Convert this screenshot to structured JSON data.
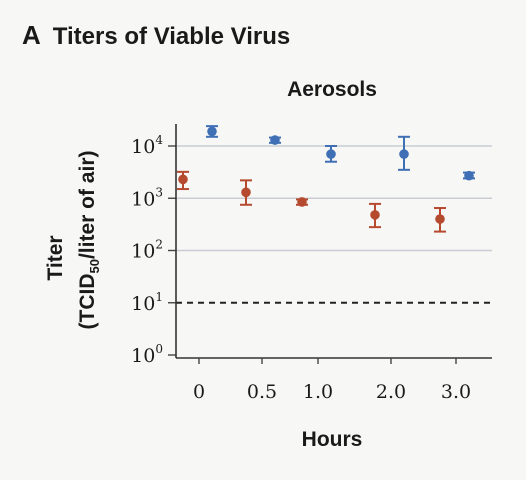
{
  "heading": {
    "panel_letter": "A",
    "title": "Titers of Viable Virus"
  },
  "chart_data": {
    "type": "scatter",
    "subtitle": "Aerosols",
    "xlabel": "Hours",
    "ylabel_line1": "Titer",
    "ylabel_line2_main": "(TCID",
    "ylabel_line2_sub": "50",
    "ylabel_line2_rest": "/liter of air)",
    "y_scale": "log10",
    "ylim": [
      1,
      30000
    ],
    "y_ticks": [
      {
        "value": 1,
        "base": "10",
        "exp": "0"
      },
      {
        "value": 10,
        "base": "10",
        "exp": "1"
      },
      {
        "value": 100,
        "base": "10",
        "exp": "2"
      },
      {
        "value": 1000,
        "base": "10",
        "exp": "3"
      },
      {
        "value": 10000,
        "base": "10",
        "exp": "4"
      }
    ],
    "categories": [
      "0",
      "0.5",
      "1.0",
      "2.0",
      "3.0"
    ],
    "grid": true,
    "detection_limit": {
      "value": 10,
      "style": "dashed"
    },
    "series": [
      {
        "color": "#3f6fb5",
        "values": [
          19000,
          13000,
          7000,
          7000,
          2700
        ],
        "err_low": [
          15000,
          11500,
          5000,
          3500,
          2400
        ],
        "err_high": [
          24000,
          14500,
          10000,
          15000,
          3100
        ]
      },
      {
        "color": "#b54a2f",
        "values": [
          2300,
          1300,
          850,
          480,
          400
        ],
        "err_low": [
          1500,
          750,
          750,
          280,
          230
        ],
        "err_high": [
          3200,
          2200,
          950,
          780,
          650
        ]
      }
    ]
  }
}
